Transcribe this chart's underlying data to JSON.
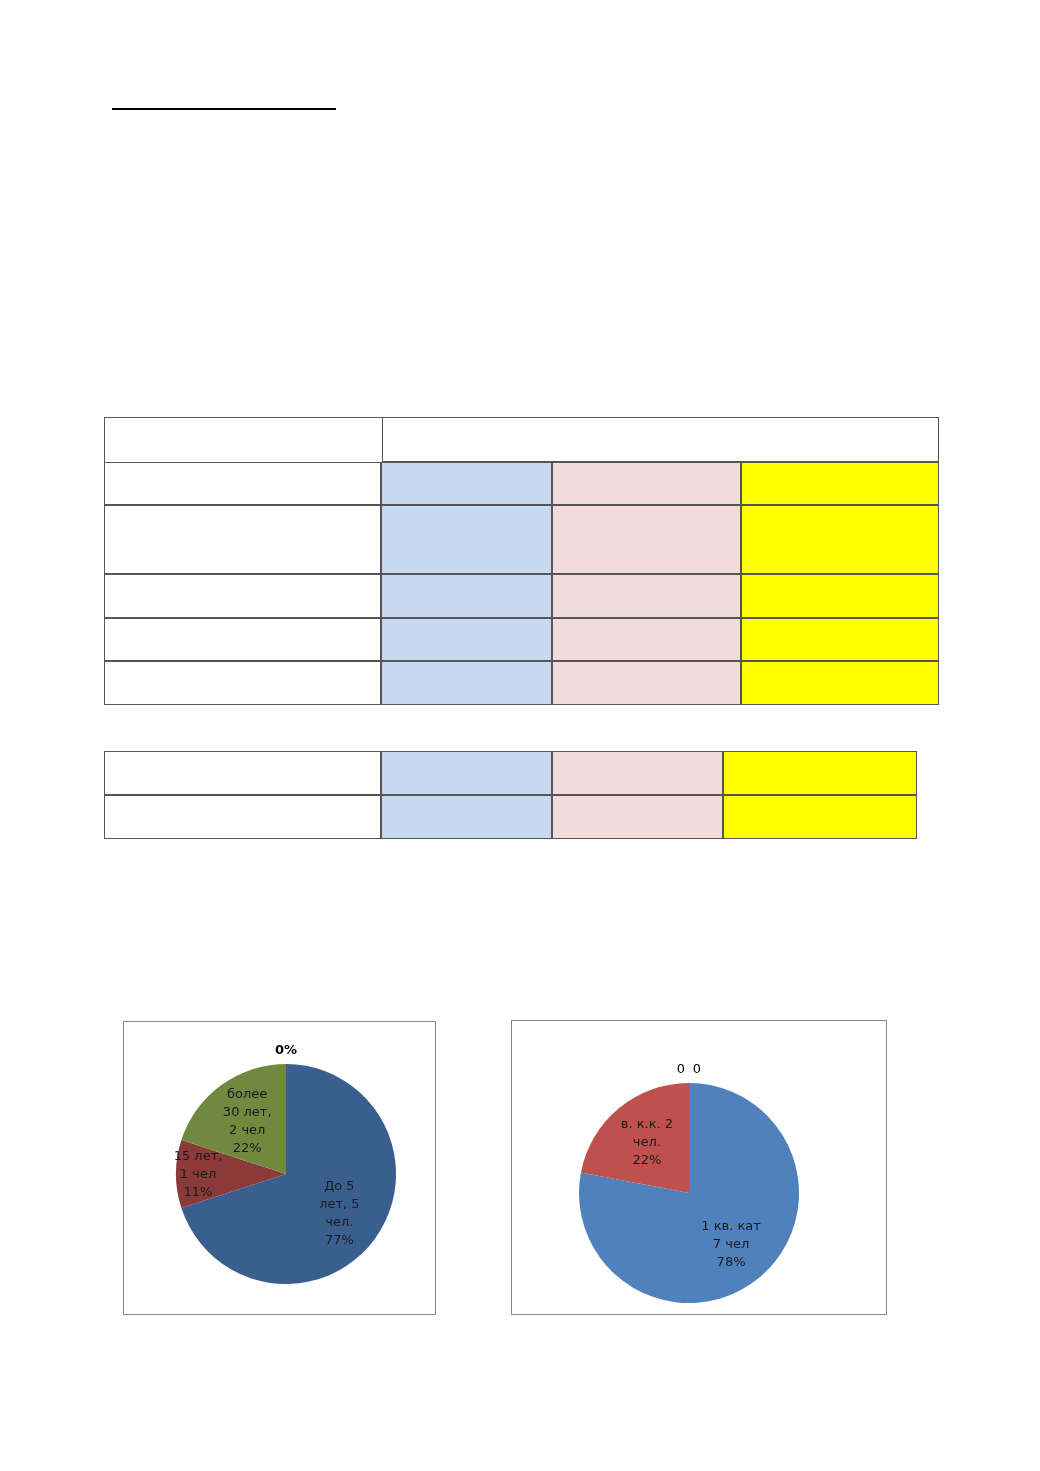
{
  "chart_data": [
    {
      "type": "pie",
      "categories": [
        "До 5 лет, 5 чел.",
        "15 лет, 1 чел",
        "более 30 лет, 2 чел",
        null
      ],
      "values": [
        77,
        11,
        22,
        0
      ],
      "colors": [
        "#3a5f8f",
        "#8b3a3a",
        "#71893f",
        "#4a7ab0"
      ],
      "value_labels": [
        "77%",
        "11%",
        "22%",
        "0%"
      ],
      "legend": false
    },
    {
      "type": "pie",
      "categories": [
        "1 кв. кат 7 чел",
        "в. к.к. 2 чел.",
        null,
        null
      ],
      "values": [
        78,
        22,
        0,
        0
      ],
      "colors": [
        "#4f81bd",
        "#c0504d",
        "#9bbb59",
        "#8064a2"
      ],
      "value_labels": [
        "78%",
        "22%",
        "0",
        "0"
      ],
      "legend": false
    }
  ]
}
